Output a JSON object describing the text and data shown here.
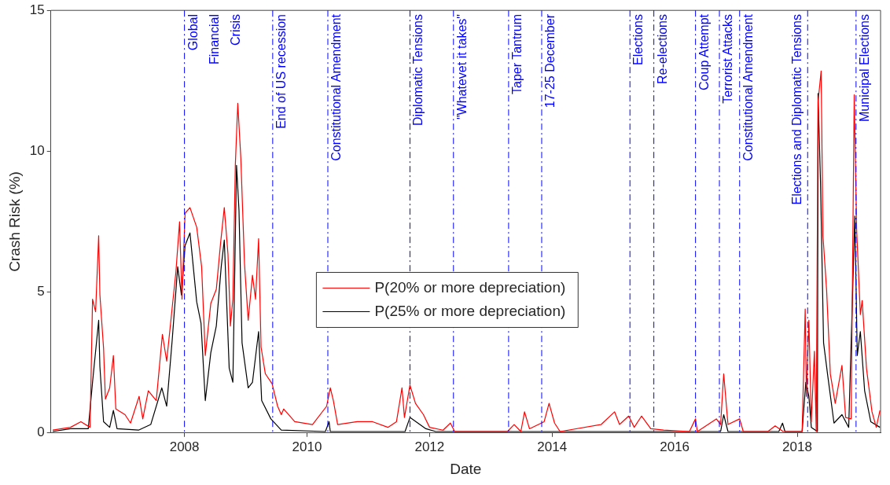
{
  "chart_data": {
    "type": "line",
    "xlabel": "Date",
    "ylabel": "Crash Risk (%)",
    "xlim": [
      2005.82,
      2019.36
    ],
    "xticks": [
      2008,
      2010,
      2012,
      2014,
      2016,
      2018
    ],
    "ylim": [
      0,
      15
    ],
    "yticks": [
      0,
      5,
      10,
      15
    ],
    "grid": false,
    "legend": "center",
    "marker": "none",
    "line_style": "solid",
    "series": [
      {
        "name": "P(20% or more depreciation)",
        "color": "#ff0000",
        "x": [
          2005.85,
          2006.14,
          2006.31,
          2006.46,
          2006.5,
          2006.55,
          2006.6,
          2006.62,
          2006.68,
          2006.71,
          2006.78,
          2006.84,
          2006.88,
          2007.03,
          2007.12,
          2007.26,
          2007.32,
          2007.41,
          2007.54,
          2007.64,
          2007.71,
          2007.8,
          2007.86,
          2007.92,
          2007.96,
          2008.01,
          2008.09,
          2008.2,
          2008.28,
          2008.34,
          2008.43,
          2008.52,
          2008.59,
          2008.65,
          2008.71,
          2008.75,
          2008.79,
          2008.83,
          2008.87,
          2008.92,
          2008.98,
          2009.04,
          2009.11,
          2009.16,
          2009.21,
          2009.25,
          2009.32,
          2009.43,
          2009.52,
          2009.58,
          2009.62,
          2009.8,
          2010.09,
          2010.32,
          2010.38,
          2010.43,
          2010.5,
          2010.82,
          2011.07,
          2011.32,
          2011.46,
          2011.55,
          2011.59,
          2011.68,
          2011.77,
          2011.9,
          2012.0,
          2012.22,
          2012.34,
          2012.41,
          2013.27,
          2013.38,
          2013.49,
          2013.55,
          2013.63,
          2013.87,
          2013.95,
          2014.04,
          2014.13,
          2014.8,
          2015.02,
          2015.1,
          2015.25,
          2015.34,
          2015.46,
          2015.61,
          2015.82,
          2016.24,
          2016.34,
          2016.37,
          2016.68,
          2016.75,
          2016.8,
          2016.87,
          2017.06,
          2017.12,
          2017.52,
          2017.64,
          2017.77,
          2018.08,
          2018.13,
          2018.15,
          2018.19,
          2018.23,
          2018.28,
          2018.31,
          2018.34,
          2018.39,
          2018.42,
          2018.48,
          2018.54,
          2018.62,
          2018.73,
          2018.79,
          2018.88,
          2018.93,
          2018.97,
          2019.03,
          2019.06,
          2019.13,
          2019.22,
          2019.29,
          2019.35
        ],
        "values": [
          0.1,
          0.2,
          0.4,
          0.2,
          4.75,
          4.3,
          7.0,
          4.9,
          3.0,
          1.2,
          1.6,
          2.75,
          0.85,
          0.65,
          0.35,
          1.3,
          0.5,
          1.5,
          1.15,
          3.5,
          2.55,
          4.45,
          5.7,
          7.5,
          4.75,
          7.8,
          8.0,
          7.3,
          5.9,
          2.75,
          4.6,
          5.1,
          6.75,
          8.0,
          6.35,
          3.8,
          4.75,
          9.5,
          11.7,
          9.75,
          6.0,
          4.0,
          5.6,
          4.75,
          6.9,
          3.05,
          2.1,
          1.75,
          0.95,
          0.65,
          0.85,
          0.4,
          0.3,
          0.95,
          1.6,
          1.15,
          0.3,
          0.4,
          0.4,
          0.2,
          0.4,
          1.6,
          0.55,
          1.7,
          1.05,
          0.65,
          0.2,
          0.1,
          0.35,
          0.05,
          0.05,
          0.3,
          0.05,
          0.75,
          0.15,
          0.4,
          1.05,
          0.35,
          0.05,
          0.3,
          0.75,
          0.3,
          0.6,
          0.2,
          0.6,
          0.15,
          0.1,
          0.05,
          0.5,
          0.05,
          0.5,
          0.3,
          2.1,
          0.3,
          0.5,
          0.05,
          0.05,
          0.25,
          0.05,
          0.05,
          4.4,
          1.3,
          4.0,
          0.4,
          2.9,
          0.05,
          11.75,
          12.85,
          7.0,
          5.05,
          2.1,
          1.05,
          2.4,
          0.55,
          0.5,
          12.0,
          7.2,
          4.2,
          4.7,
          2.3,
          0.75,
          0.2,
          0.8
        ]
      },
      {
        "name": "P(25% or more depreciation)",
        "color": "#000000",
        "x": [
          2005.85,
          2006.14,
          2006.43,
          2006.5,
          2006.6,
          2006.62,
          2006.68,
          2006.78,
          2006.84,
          2006.9,
          2007.25,
          2007.45,
          2007.63,
          2007.71,
          2007.8,
          2007.89,
          2007.95,
          2008.01,
          2008.09,
          2008.2,
          2008.27,
          2008.34,
          2008.43,
          2008.52,
          2008.6,
          2008.65,
          2008.73,
          2008.79,
          2008.85,
          2008.89,
          2008.94,
          2009.04,
          2009.11,
          2009.21,
          2009.26,
          2009.41,
          2009.58,
          2010.3,
          2010.36,
          2010.38,
          2011.6,
          2011.68,
          2011.94,
          2012.1,
          2016.75,
          2016.8,
          2016.87,
          2017.7,
          2017.76,
          2017.8,
          2018.08,
          2018.14,
          2018.19,
          2018.23,
          2018.33,
          2018.34,
          2018.38,
          2018.43,
          2018.5,
          2018.6,
          2018.73,
          2018.84,
          2018.94,
          2018.98,
          2019.03,
          2019.1,
          2019.2,
          2019.35
        ],
        "values": [
          0.05,
          0.15,
          0.15,
          1.8,
          4.0,
          2.35,
          0.4,
          0.2,
          0.8,
          0.15,
          0.1,
          0.3,
          1.6,
          0.95,
          3.3,
          5.9,
          4.9,
          6.65,
          7.1,
          4.65,
          3.9,
          1.15,
          2.85,
          3.8,
          5.9,
          6.85,
          2.3,
          1.8,
          9.5,
          7.9,
          3.2,
          1.6,
          1.8,
          3.6,
          1.15,
          0.5,
          0.1,
          0.05,
          0.4,
          0.05,
          0.05,
          0.55,
          0.15,
          0.05,
          0.05,
          0.65,
          0.05,
          0.05,
          0.35,
          0.05,
          0.05,
          1.8,
          1.3,
          0.2,
          0.05,
          12.05,
          8.9,
          3.2,
          2.0,
          0.35,
          0.65,
          0.2,
          7.7,
          2.75,
          3.6,
          1.5,
          0.4,
          0.2
        ]
      }
    ],
    "ref_lines": [
      {
        "axis": "x",
        "value": 2008.0,
        "label": "Global\nFinancial\nCrisis",
        "color": "#0000ff",
        "line_style": "dashed"
      },
      {
        "axis": "x",
        "value": 2009.44,
        "label": "End of US recession",
        "color": "#0000ff",
        "line_style": "dashed"
      },
      {
        "axis": "x",
        "value": 2010.34,
        "label": "Constitutional Amendment",
        "color": "#0000ff",
        "line_style": "dashed"
      },
      {
        "axis": "x",
        "value": 2011.68,
        "label": "Diplomatic Tensions",
        "color": "#0000ff",
        "line_style": "dashed"
      },
      {
        "axis": "x",
        "value": 2012.39,
        "label": "\"Whatevet it takes\"",
        "color": "#0000ff",
        "line_style": "dashed"
      },
      {
        "axis": "x",
        "value": 2013.29,
        "label": "Taper Tantrum",
        "color": "#0000ff",
        "line_style": "dashed"
      },
      {
        "axis": "x",
        "value": 2013.83,
        "label": "17-25 December",
        "color": "#0000ff",
        "line_style": "dashed"
      },
      {
        "axis": "x",
        "value": 2015.27,
        "label": "Elections",
        "color": "#0000ff",
        "line_style": "dashed"
      },
      {
        "axis": "x",
        "value": 2015.66,
        "label": "Re-elections",
        "color": "#0000ff",
        "line_style": "dashed"
      },
      {
        "axis": "x",
        "value": 2016.34,
        "label": "Coup Attempt",
        "color": "#0000ff",
        "line_style": "dashed"
      },
      {
        "axis": "x",
        "value": 2016.73,
        "label": "Terrorist Attacks",
        "color": "#0000ff",
        "line_style": "dashed"
      },
      {
        "axis": "x",
        "value": 2017.06,
        "label": "Constitutional Amendment",
        "color": "#0000ff",
        "line_style": "dashed"
      },
      {
        "axis": "x",
        "value": 2018.17,
        "label": "Elections and Diplomatic Tensions",
        "color": "#0000ff",
        "line_style": "dashed"
      },
      {
        "axis": "x",
        "value": 2018.96,
        "label": "Municipal Elections",
        "color": "#0000ff",
        "line_style": "dashed"
      }
    ]
  }
}
